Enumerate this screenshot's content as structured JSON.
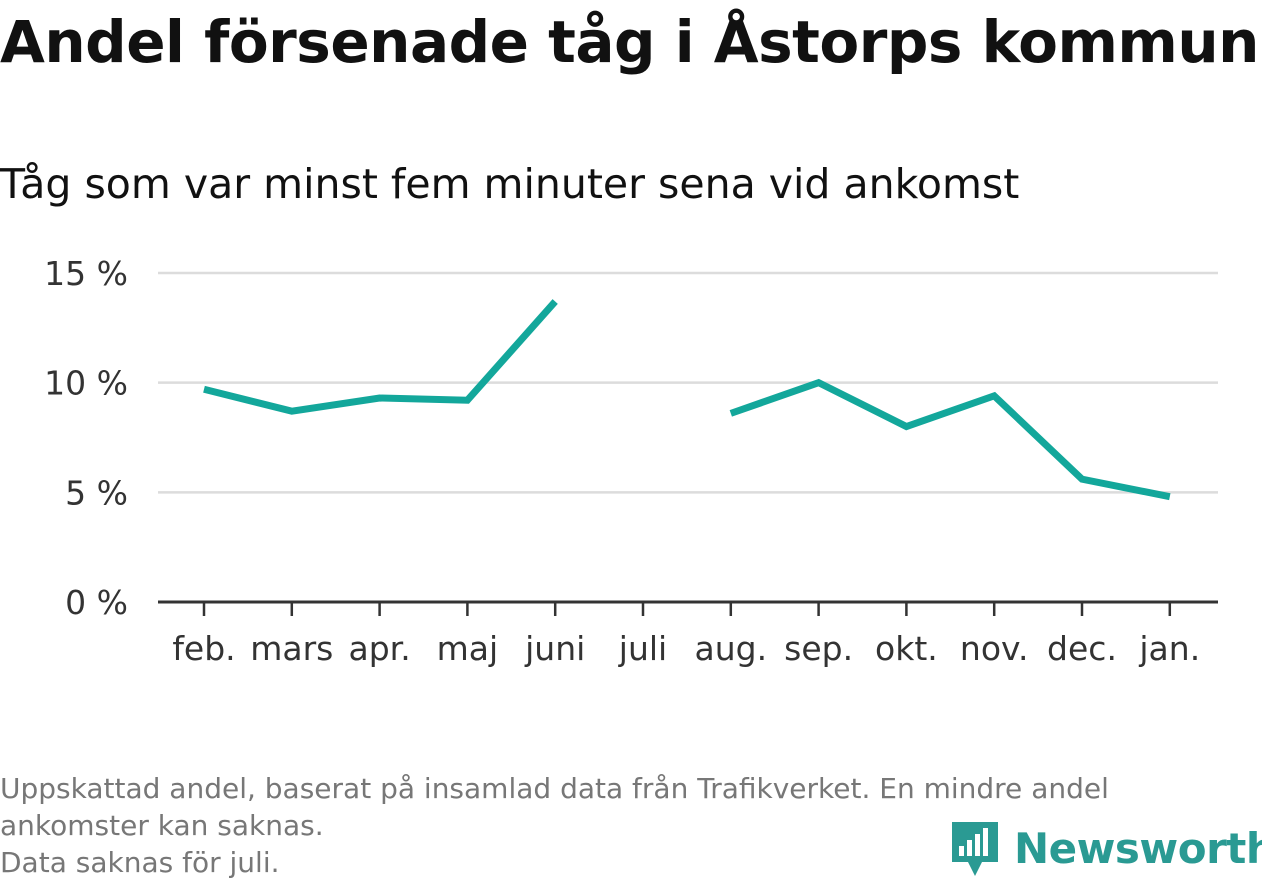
{
  "chart_data": {
    "type": "line",
    "title": "Andel försenade tåg i Åstorps kommun",
    "subtitle": "Tåg som var minst fem minuter sena vid ankomst",
    "categories": [
      "feb.",
      "mars",
      "apr.",
      "maj",
      "juni",
      "juli",
      "aug.",
      "sep.",
      "okt.",
      "nov.",
      "dec.",
      "jan."
    ],
    "series": [
      {
        "values": [
          9.7,
          8.7,
          9.3,
          9.2,
          13.7,
          null,
          8.6,
          10.0,
          8.0,
          9.4,
          5.6,
          4.8
        ],
        "color": "#13a79b"
      }
    ],
    "y_ticks": [
      0,
      5,
      10,
      15
    ],
    "y_tick_labels": [
      "0 %",
      "5 %",
      "10 %",
      "15 %"
    ],
    "ylim": [
      0,
      15
    ],
    "grid": true
  },
  "footnote": {
    "line1": "Uppskattad andel, baserat på insamlad data från Trafikverket. En mindre andel",
    "line2": "ankomster kan saknas.",
    "line3": "Data saknas för juli."
  },
  "logo": {
    "text": "Newsworthy",
    "icon": "newsworthy-chart-icon",
    "color": "#2a9a93"
  }
}
